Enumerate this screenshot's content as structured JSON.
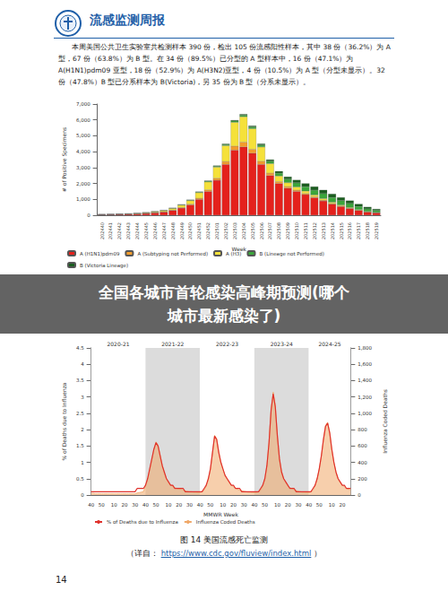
{
  "header": {
    "title": "流感监测周报"
  },
  "paragraph": "本周美国公共卫生实验室共检测样本 390 份，检出 105 份流感阳性样本，其中 38 份（36.2%）为 A 型，67 份（63.8%）为 B 型。在 34 份（89.5%）已分型的 A 型样本中，16 份（47.1%）为 A(H1N1)pdm09 亚型，18 份（52.9%）为 A(H3N2)亚型，4 份（10.5%）为 A 型（分型未显示）。32 份（47.8%）B 型已分系样本为 B(Victoria)，另 35 份为 B 型（分系未显示）。",
  "banner": [
    "全国各城市首轮感染高峰期预测(哪个",
    "城市最新感染了)"
  ],
  "chart_data": [
    {
      "type": "bar",
      "stacked": true,
      "grid": false,
      "legend": "bottom",
      "x_label": "Week",
      "y_label": "# of Positive Specimens",
      "categories": [
        "202440",
        "202441",
        "202442",
        "202443",
        "202444",
        "202445",
        "202446",
        "202447",
        "202448",
        "202449",
        "202450",
        "202451",
        "202452",
        "202501",
        "202502",
        "202503",
        "202504",
        "202505",
        "202506",
        "202507",
        "202508",
        "202509",
        "202510",
        "202511",
        "202512",
        "202513",
        "202514",
        "202515",
        "202516",
        "202517",
        "202518",
        "202519"
      ],
      "ylim": [
        0,
        7000
      ],
      "yticks": [
        0,
        {
          "value": 1000,
          "label": "1,000"
        },
        {
          "value": 2000,
          "label": "2,000"
        },
        {
          "value": 3000,
          "label": "3,000"
        },
        {
          "value": 4000,
          "label": "4,000"
        },
        {
          "value": 5000,
          "label": "5,000"
        },
        {
          "value": 6000,
          "label": "6,000"
        },
        {
          "value": 7000,
          "label": "7,000"
        }
      ],
      "series": [
        {
          "name": "A (H1N1)pdm09",
          "color": "#e4211c",
          "values": [
            30,
            40,
            50,
            60,
            80,
            110,
            150,
            200,
            300,
            450,
            650,
            1000,
            1500,
            2200,
            3200,
            4100,
            4300,
            3900,
            3200,
            2500,
            2000,
            1700,
            1500,
            1300,
            1100,
            900,
            700,
            550,
            420,
            300,
            200,
            150
          ]
        },
        {
          "name": "A (Subtyping not Performed)",
          "color": "#f39c2c",
          "values": [
            5,
            5,
            5,
            5,
            10,
            10,
            15,
            20,
            25,
            35,
            50,
            70,
            100,
            130,
            180,
            250,
            300,
            250,
            200,
            150,
            120,
            100,
            80,
            70,
            60,
            50,
            40,
            30,
            20,
            15,
            10,
            10
          ]
        },
        {
          "name": "A (H3)",
          "color": "#f5e13a",
          "values": [
            10,
            10,
            15,
            20,
            25,
            35,
            50,
            70,
            100,
            150,
            220,
            350,
            500,
            700,
            1000,
            1500,
            1600,
            1300,
            900,
            600,
            350,
            250,
            200,
            150,
            120,
            100,
            80,
            60,
            50,
            40,
            30,
            20
          ]
        },
        {
          "name": "B (Lineage not Performed)",
          "color": "#3aa63a",
          "values": [
            10,
            10,
            10,
            10,
            15,
            15,
            20,
            20,
            25,
            30,
            35,
            40,
            50,
            60,
            70,
            90,
            100,
            110,
            120,
            150,
            180,
            220,
            260,
            280,
            300,
            310,
            300,
            280,
            250,
            200,
            160,
            120
          ]
        },
        {
          "name": "B (Victoria Lineage)",
          "color": "#1b5e20",
          "values": [
            5,
            5,
            5,
            5,
            5,
            10,
            10,
            10,
            10,
            15,
            15,
            20,
            25,
            30,
            40,
            50,
            60,
            70,
            80,
            100,
            120,
            150,
            180,
            200,
            220,
            230,
            220,
            200,
            180,
            150,
            120,
            90
          ]
        }
      ]
    },
    {
      "type": "line",
      "grid": false,
      "legend": "bottom",
      "x_label": "MMWR Week",
      "y_label": "% of Deaths due to Influenza",
      "y2_label": "Influenza Coded Deaths",
      "seasons": [
        {
          "label": "2020-21",
          "color": "#ffffff"
        },
        {
          "label": "2021-22",
          "color": "#dcdcdc"
        },
        {
          "label": "2022-23",
          "color": "#ffffff"
        },
        {
          "label": "2023-24",
          "color": "#dcdcdc"
        },
        {
          "label": "2024-25",
          "color": "#ffffff"
        }
      ],
      "categories": [
        "40",
        null,
        null,
        null,
        null,
        "50",
        null,
        null,
        null,
        null,
        null,
        "10",
        null,
        null,
        null,
        null,
        "20",
        null,
        null,
        null,
        null,
        "30",
        null,
        null,
        null,
        null,
        "40",
        null,
        null,
        null,
        null,
        "50",
        null,
        null,
        null,
        null,
        null,
        "10",
        null,
        null,
        null,
        null,
        "20",
        null,
        null,
        null,
        null,
        "30",
        null,
        null,
        null,
        null,
        "40",
        null,
        null,
        null,
        null,
        "50",
        null,
        null,
        null,
        null,
        null,
        "10",
        null,
        null,
        null,
        null,
        "20",
        null,
        null,
        null,
        null,
        "30",
        null,
        null,
        null,
        null,
        "40",
        null,
        null,
        null,
        null,
        "50",
        null,
        null,
        null,
        null,
        null,
        "10",
        null,
        null,
        null,
        null,
        "20",
        null,
        null,
        null,
        null,
        "30",
        null,
        null,
        null,
        null,
        "40",
        null,
        null,
        null,
        null,
        "50",
        null,
        null,
        null,
        null,
        null,
        "10",
        null,
        null,
        null,
        null,
        "20",
        null,
        null,
        null,
        null
      ],
      "ylim": [
        0,
        4.5
      ],
      "yticks": [
        0,
        0.5,
        1,
        1.5,
        2,
        2.5,
        3,
        3.5,
        4,
        4.5
      ],
      "y2lim": [
        0,
        1800
      ],
      "y2ticks": [
        0,
        200,
        400,
        600,
        800,
        {
          "value": 1000,
          "label": "1,000"
        },
        {
          "value": 1200,
          "label": "1,200"
        },
        {
          "value": 1400,
          "label": "1,400"
        },
        {
          "value": 1600,
          "label": "1,600"
        },
        {
          "value": 1800,
          "label": "1,800"
        }
      ],
      "series": [
        {
          "name": "% of Deaths due to Influenza",
          "type": "line",
          "color": "#e0312b",
          "values": [
            0.1,
            0.1,
            0.1,
            0.1,
            0.1,
            0.1,
            0.1,
            0.1,
            0.1,
            0.1,
            0.1,
            0.1,
            0.1,
            0.1,
            0.1,
            0.1,
            0.1,
            0.1,
            0.1,
            0.1,
            0.1,
            0.1,
            0.2,
            0.2,
            0.2,
            0.2,
            0.3,
            0.5,
            0.8,
            1.1,
            1.4,
            1.6,
            1.5,
            1.2,
            0.9,
            0.7,
            0.5,
            0.4,
            0.3,
            0.3,
            0.2,
            0.2,
            0.2,
            0.2,
            0.2,
            0.1,
            0.1,
            0.1,
            0.1,
            0.1,
            0.1,
            0.1,
            0.1,
            0.1,
            0.2,
            0.3,
            0.5,
            0.8,
            1.3,
            1.8,
            1.7,
            1.3,
            1.0,
            0.8,
            0.6,
            0.5,
            0.4,
            0.3,
            0.3,
            0.2,
            0.2,
            0.2,
            0.1,
            0.1,
            0.1,
            0.1,
            0.1,
            0.1,
            0.1,
            0.1,
            0.1,
            0.2,
            0.3,
            0.5,
            0.9,
            1.6,
            2.6,
            3.1,
            2.7,
            1.8,
            1.1,
            0.7,
            0.5,
            0.4,
            0.3,
            0.2,
            0.2,
            0.2,
            0.1,
            0.1,
            0.1,
            0.1,
            0.1,
            0.1,
            0.1,
            0.1,
            0.2,
            0.3,
            0.5,
            0.8,
            1.2,
            1.7,
            2.1,
            2.2,
            1.9,
            1.4,
            1.0,
            0.7,
            0.5,
            0.4,
            0.3,
            0.3,
            0.2,
            0.2,
            0.2
          ]
        },
        {
          "name": "Influenza Coded Deaths",
          "type": "area",
          "axis": "y2",
          "color": "#f0a868",
          "values": [
            20,
            20,
            15,
            15,
            15,
            15,
            15,
            15,
            15,
            15,
            15,
            15,
            15,
            15,
            15,
            15,
            15,
            15,
            15,
            15,
            15,
            15,
            25,
            30,
            35,
            40,
            110,
            190,
            310,
            430,
            560,
            650,
            610,
            490,
            360,
            270,
            200,
            150,
            120,
            110,
            90,
            80,
            70,
            70,
            60,
            50,
            45,
            40,
            40,
            35,
            35,
            30,
            30,
            40,
            60,
            110,
            190,
            320,
            520,
            730,
            690,
            530,
            400,
            310,
            240,
            190,
            150,
            120,
            100,
            85,
            70,
            60,
            50,
            45,
            40,
            35,
            35,
            30,
            30,
            30,
            40,
            60,
            110,
            200,
            360,
            650,
            1050,
            1260,
            1100,
            730,
            440,
            290,
            200,
            150,
            110,
            90,
            75,
            65,
            55,
            45,
            40,
            35,
            35,
            30,
            30,
            40,
            60,
            110,
            200,
            320,
            480,
            680,
            850,
            890,
            770,
            560,
            400,
            280,
            200,
            150,
            120,
            100,
            80,
            70,
            65
          ]
        }
      ]
    }
  ],
  "caption": "图 14  美国流感死亡监测",
  "source": {
    "prefix": "（详自：",
    "url": "https://www.cdc.gov/fluview/index.html",
    "suffix": "）"
  },
  "page_number": 14
}
